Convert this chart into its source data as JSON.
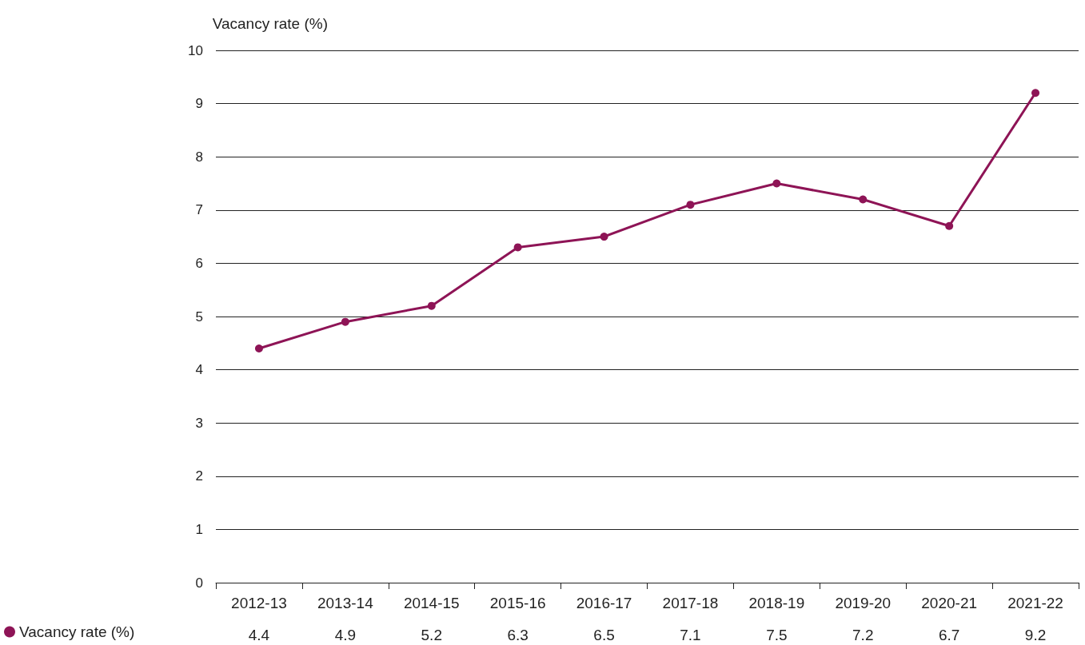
{
  "chart_data": {
    "type": "line",
    "ylabel": "Vacancy rate (%)",
    "categories": [
      "2012-13",
      "2013-14",
      "2014-15",
      "2015-16",
      "2016-17",
      "2017-18",
      "2018-19",
      "2019-20",
      "2020-21",
      "2021-22"
    ],
    "series": [
      {
        "name": "Vacancy rate (%)",
        "color": "#8e1456",
        "values": [
          4.4,
          4.9,
          5.2,
          6.3,
          6.5,
          7.1,
          7.5,
          7.2,
          6.7,
          9.2
        ]
      }
    ],
    "ylim": [
      0,
      10
    ],
    "yticks": [
      0,
      1,
      2,
      3,
      4,
      5,
      6,
      7,
      8,
      9,
      10
    ],
    "grid": "y",
    "legend": "bottom left",
    "marker": "circle",
    "line_style": "solid",
    "data_labels": true
  }
}
